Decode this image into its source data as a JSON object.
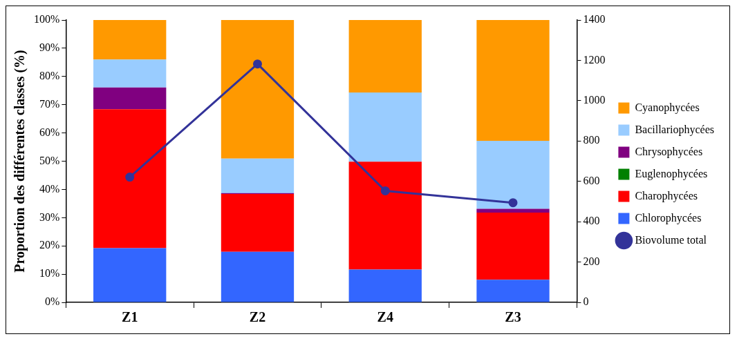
{
  "chart_data": {
    "type": "bar",
    "stacked": true,
    "ylabel": "Proportion des différentes classes (%)",
    "categories": [
      "Z1",
      "Z2",
      "Z4",
      "Z3"
    ],
    "series": [
      {
        "name": "Chlorophycées",
        "color": "#3366ff",
        "values": [
          19.2,
          17.9,
          11.6,
          8.0
        ]
      },
      {
        "name": "Charophycées",
        "color": "#ff0000",
        "values": [
          49.2,
          20.5,
          38.2,
          23.8
        ]
      },
      {
        "name": "Euglenophycées",
        "color": "#008000",
        "values": [
          0,
          0,
          0,
          0
        ]
      },
      {
        "name": "Chrysophycées",
        "color": "#800080",
        "values": [
          7.7,
          0.3,
          0,
          1.3
        ]
      },
      {
        "name": "Bacillariophycées",
        "color": "#99ccff",
        "values": [
          9.9,
          12.2,
          24.5,
          24.1
        ]
      },
      {
        "name": "Cyanophycées",
        "color": "#ff9900",
        "values": [
          14.0,
          49.1,
          25.7,
          42.8
        ]
      },
      {
        "name": "Biovolume total",
        "type": "line",
        "axis": "y2",
        "color": "#333399",
        "marker": "circle",
        "values": [
          621,
          1182,
          553,
          494
        ]
      }
    ],
    "ylim": [
      0,
      100
    ],
    "yticks": [
      {
        "value": 0,
        "label": "0%"
      },
      {
        "value": 10,
        "label": "10%"
      },
      {
        "value": 20,
        "label": "20%"
      },
      {
        "value": 30,
        "label": "30%"
      },
      {
        "value": 40,
        "label": "40%"
      },
      {
        "value": 50,
        "label": "50%"
      },
      {
        "value": 60,
        "label": "60%"
      },
      {
        "value": 70,
        "label": "70%"
      },
      {
        "value": 80,
        "label": "80%"
      },
      {
        "value": 90,
        "label": "90%"
      },
      {
        "value": 100,
        "label": "100%"
      }
    ],
    "y2lim": [
      0,
      1400
    ],
    "y2ticks": [
      0,
      200,
      400,
      600,
      800,
      1000,
      1200,
      1400
    ],
    "grid": false,
    "legend": "right"
  }
}
